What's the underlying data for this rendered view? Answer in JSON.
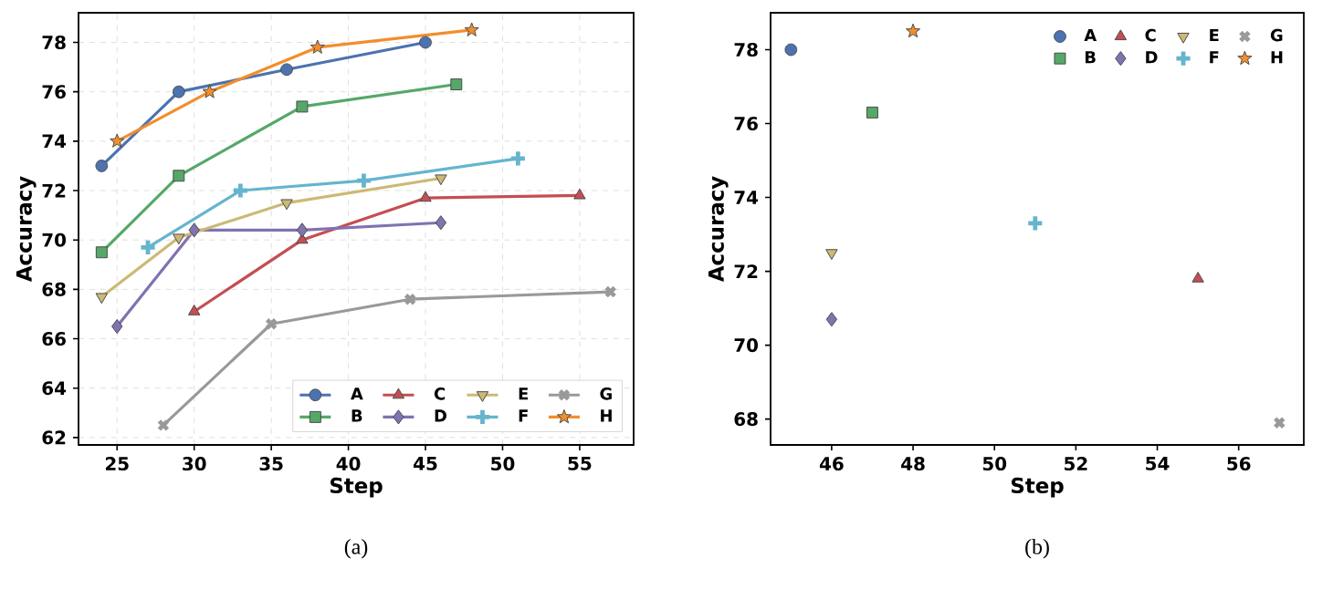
{
  "chart_data": [
    {
      "type": "line",
      "xlabel": "Step",
      "ylabel": "Accuracy",
      "xlim": [
        22.5,
        58.5
      ],
      "ylim": [
        61.7,
        79.2
      ],
      "xticks": [
        25,
        30,
        35,
        40,
        45,
        50,
        55
      ],
      "yticks": [
        62,
        64,
        66,
        68,
        70,
        72,
        74,
        76,
        78
      ],
      "grid": true,
      "legend": "bottom right",
      "annotations": [
        "(a)"
      ],
      "series": [
        {
          "name": "A",
          "color": "#4c72b0",
          "marker": "circle",
          "x": [
            24,
            29,
            36,
            45
          ],
          "values": [
            73.0,
            76.0,
            76.9,
            78.0
          ]
        },
        {
          "name": "B",
          "color": "#55a868",
          "marker": "square",
          "x": [
            24,
            29,
            37,
            47
          ],
          "values": [
            69.5,
            72.6,
            75.4,
            76.3
          ]
        },
        {
          "name": "C",
          "color": "#c44e52",
          "marker": "triangle",
          "x": [
            30,
            37,
            45,
            55
          ],
          "values": [
            67.1,
            70.0,
            71.7,
            71.8
          ]
        },
        {
          "name": "D",
          "color": "#8172b2",
          "marker": "diamond",
          "x": [
            25,
            30,
            37,
            46
          ],
          "values": [
            66.5,
            70.4,
            70.4,
            70.7
          ]
        },
        {
          "name": "E",
          "color": "#ccb974",
          "marker": "triangle-down",
          "x": [
            24,
            29,
            36,
            46
          ],
          "values": [
            67.7,
            70.1,
            71.5,
            72.5
          ]
        },
        {
          "name": "F",
          "color": "#64b5cd",
          "marker": "plus",
          "x": [
            27,
            33,
            41,
            51
          ],
          "values": [
            69.7,
            72.0,
            72.4,
            73.3
          ]
        },
        {
          "name": "G",
          "color": "#999999",
          "marker": "cross",
          "x": [
            28,
            35,
            44,
            57
          ],
          "values": [
            62.5,
            66.6,
            67.6,
            67.9
          ]
        },
        {
          "name": "H",
          "color": "#f28e2b",
          "marker": "star",
          "x": [
            25,
            31,
            38,
            48
          ],
          "values": [
            74.0,
            76.0,
            77.8,
            78.5
          ]
        }
      ]
    },
    {
      "type": "scatter",
      "xlabel": "Step",
      "ylabel": "Accuracy",
      "xlim": [
        44.5,
        57.6
      ],
      "ylim": [
        67.3,
        79.0
      ],
      "xticks": [
        46,
        48,
        50,
        52,
        54,
        56
      ],
      "yticks": [
        68,
        70,
        72,
        74,
        76,
        78
      ],
      "grid": false,
      "legend": "top right",
      "annotations": [
        "(b)"
      ],
      "series": [
        {
          "name": "A",
          "color": "#4c72b0",
          "marker": "circle",
          "x": [
            45
          ],
          "values": [
            78.0
          ]
        },
        {
          "name": "B",
          "color": "#55a868",
          "marker": "square",
          "x": [
            47
          ],
          "values": [
            76.3
          ]
        },
        {
          "name": "C",
          "color": "#c44e52",
          "marker": "triangle",
          "x": [
            55
          ],
          "values": [
            71.8
          ]
        },
        {
          "name": "D",
          "color": "#8172b2",
          "marker": "diamond",
          "x": [
            46
          ],
          "values": [
            70.7
          ]
        },
        {
          "name": "E",
          "color": "#ccb974",
          "marker": "triangle-down",
          "x": [
            46
          ],
          "values": [
            72.5
          ]
        },
        {
          "name": "F",
          "color": "#64b5cd",
          "marker": "plus",
          "x": [
            51
          ],
          "values": [
            73.3
          ]
        },
        {
          "name": "G",
          "color": "#999999",
          "marker": "cross",
          "x": [
            57
          ],
          "values": [
            67.9
          ]
        },
        {
          "name": "H",
          "color": "#f28e2b",
          "marker": "star",
          "x": [
            48
          ],
          "values": [
            78.5
          ]
        }
      ]
    }
  ]
}
